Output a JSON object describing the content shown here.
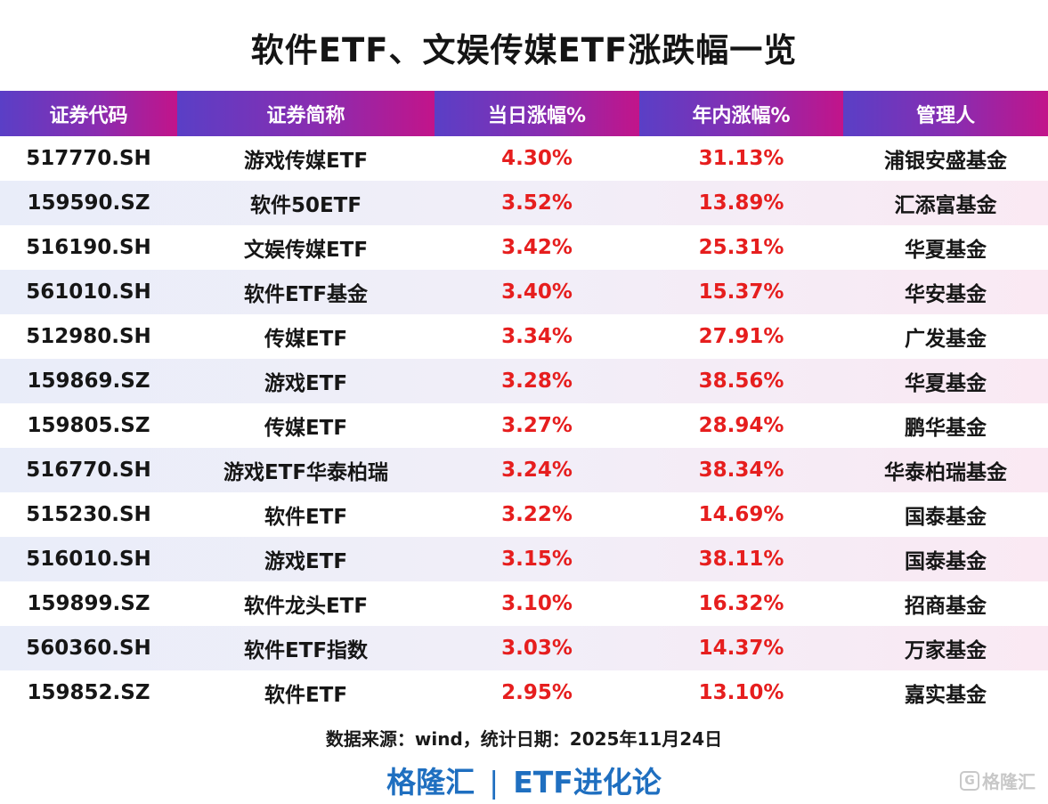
{
  "title": "软件ETF、文娱传媒ETF涨跌幅一览",
  "chart_data": {
    "type": "table",
    "title": "软件ETF、文娱传媒ETF涨跌幅一览",
    "columns": [
      "证券代码",
      "证券简称",
      "当日涨幅%",
      "年内涨幅%",
      "管理人"
    ],
    "rows": [
      [
        "517770.SH",
        "游戏传媒ETF",
        "4.30%",
        "31.13%",
        "浦银安盛基金"
      ],
      [
        "159590.SZ",
        "软件50ETF",
        "3.52%",
        "13.89%",
        "汇添富基金"
      ],
      [
        "516190.SH",
        "文娱传媒ETF",
        "3.42%",
        "25.31%",
        "华夏基金"
      ],
      [
        "561010.SH",
        "软件ETF基金",
        "3.40%",
        "15.37%",
        "华安基金"
      ],
      [
        "512980.SH",
        "传媒ETF",
        "3.34%",
        "27.91%",
        "广发基金"
      ],
      [
        "159869.SZ",
        "游戏ETF",
        "3.28%",
        "38.56%",
        "华夏基金"
      ],
      [
        "159805.SZ",
        "传媒ETF",
        "3.27%",
        "28.94%",
        "鹏华基金"
      ],
      [
        "516770.SH",
        "游戏ETF华泰柏瑞",
        "3.24%",
        "38.34%",
        "华泰柏瑞基金"
      ],
      [
        "515230.SH",
        "软件ETF",
        "3.22%",
        "14.69%",
        "国泰基金"
      ],
      [
        "516010.SH",
        "游戏ETF",
        "3.15%",
        "38.11%",
        "国泰基金"
      ],
      [
        "159899.SZ",
        "软件龙头ETF",
        "3.10%",
        "16.32%",
        "招商基金"
      ],
      [
        "560360.SH",
        "软件ETF指数",
        "3.03%",
        "14.37%",
        "万家基金"
      ],
      [
        "159852.SZ",
        "软件ETF",
        "2.95%",
        "13.10%",
        "嘉实基金"
      ]
    ],
    "header_color": "#7a30b8",
    "value_color": "#e61e1e"
  },
  "source": "数据来源：wind，统计日期：2025年11月24日",
  "footer": {
    "left": "格隆汇",
    "separator": "|",
    "right": "ETF进化论"
  },
  "watermark": {
    "logo": "G",
    "text": "格隆汇"
  }
}
